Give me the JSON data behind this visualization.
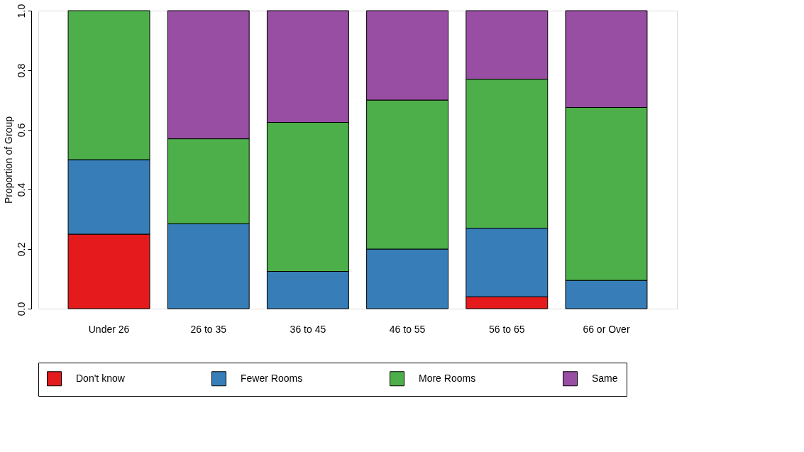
{
  "chart_data": {
    "type": "bar",
    "stacked": true,
    "ylabel": "Proportion of Group",
    "categories": [
      "Under 26",
      "26 to 35",
      "36 to 45",
      "46 to 55",
      "56 to 65",
      "66 or Over"
    ],
    "series": [
      {
        "name": "Don't know",
        "color": "#e41a1c",
        "values": [
          0.25,
          0,
          0,
          0,
          0.04,
          0
        ]
      },
      {
        "name": "Fewer Rooms",
        "color": "#377eb8",
        "values": [
          0.25,
          0.285,
          0.125,
          0.2,
          0.23,
          0.095
        ]
      },
      {
        "name": "More Rooms",
        "color": "#4daf4a",
        "values": [
          0.5,
          0.285,
          0.5,
          0.5,
          0.5,
          0.58
        ]
      },
      {
        "name": "Same",
        "color": "#984ea3",
        "values": [
          0,
          0.43,
          0.375,
          0.3,
          0.23,
          0.325
        ]
      }
    ],
    "ylim": [
      0,
      1
    ],
    "yticks": [
      {
        "value": 0,
        "label": "0.0"
      },
      {
        "value": 0.2,
        "label": "0.2"
      },
      {
        "value": 0.4,
        "label": "0.4"
      },
      {
        "value": 0.6,
        "label": "0.6"
      },
      {
        "value": 0.8,
        "label": "0.8"
      },
      {
        "value": 1,
        "label": "1.0"
      }
    ],
    "grid": false,
    "legend": "bottom"
  }
}
